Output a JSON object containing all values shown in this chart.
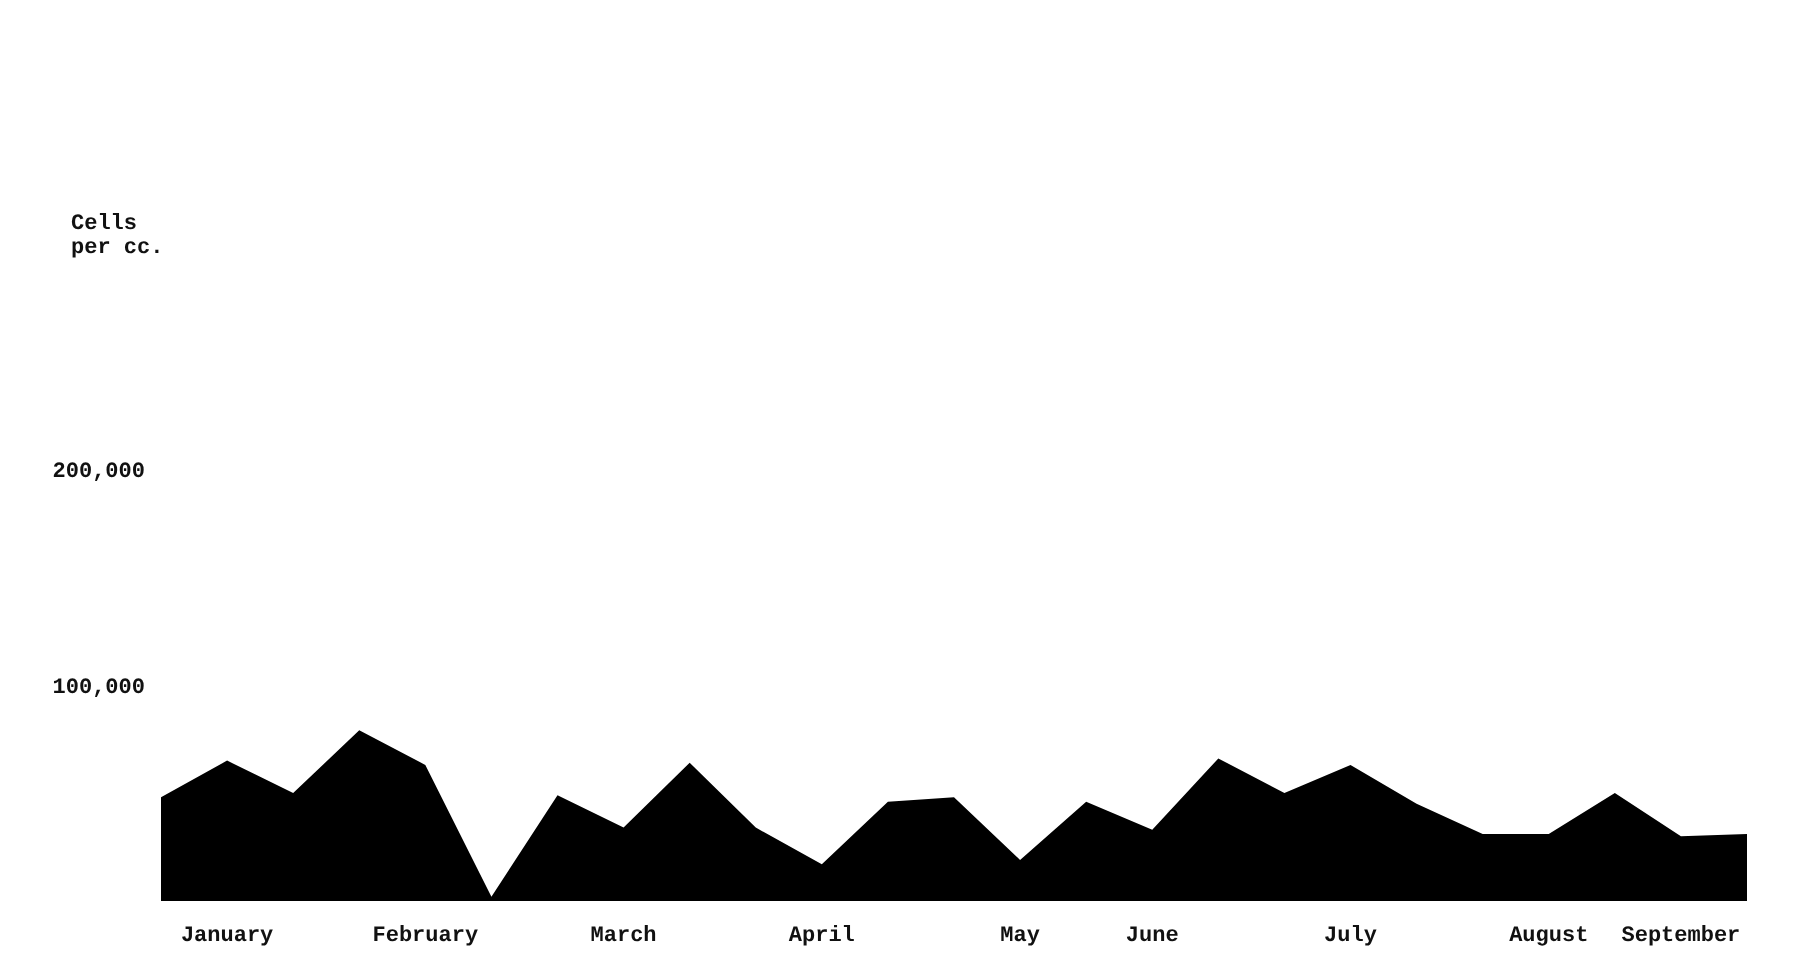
{
  "chart_data": {
    "type": "area",
    "annotations": [
      "Cells\nper cc."
    ],
    "categories": [
      null,
      "January",
      null,
      null,
      "February",
      null,
      null,
      "March",
      null,
      null,
      "April",
      null,
      null,
      "May",
      null,
      "June",
      null,
      null,
      "July",
      null,
      null,
      "August",
      null,
      "September",
      null
    ],
    "values": [
      48000,
      65000,
      50000,
      79000,
      63000,
      2000,
      49000,
      34000,
      64000,
      34000,
      17000,
      46000,
      48000,
      19000,
      46000,
      33000,
      66000,
      50000,
      63000,
      45000,
      31000,
      31000,
      50000,
      30000,
      31000
    ],
    "color": "#000000",
    "ylim": [
      0,
      200000
    ],
    "yticks": [
      {
        "value": 100000,
        "label": "100,000"
      },
      {
        "value": 200000,
        "label": "200,000"
      }
    ]
  }
}
